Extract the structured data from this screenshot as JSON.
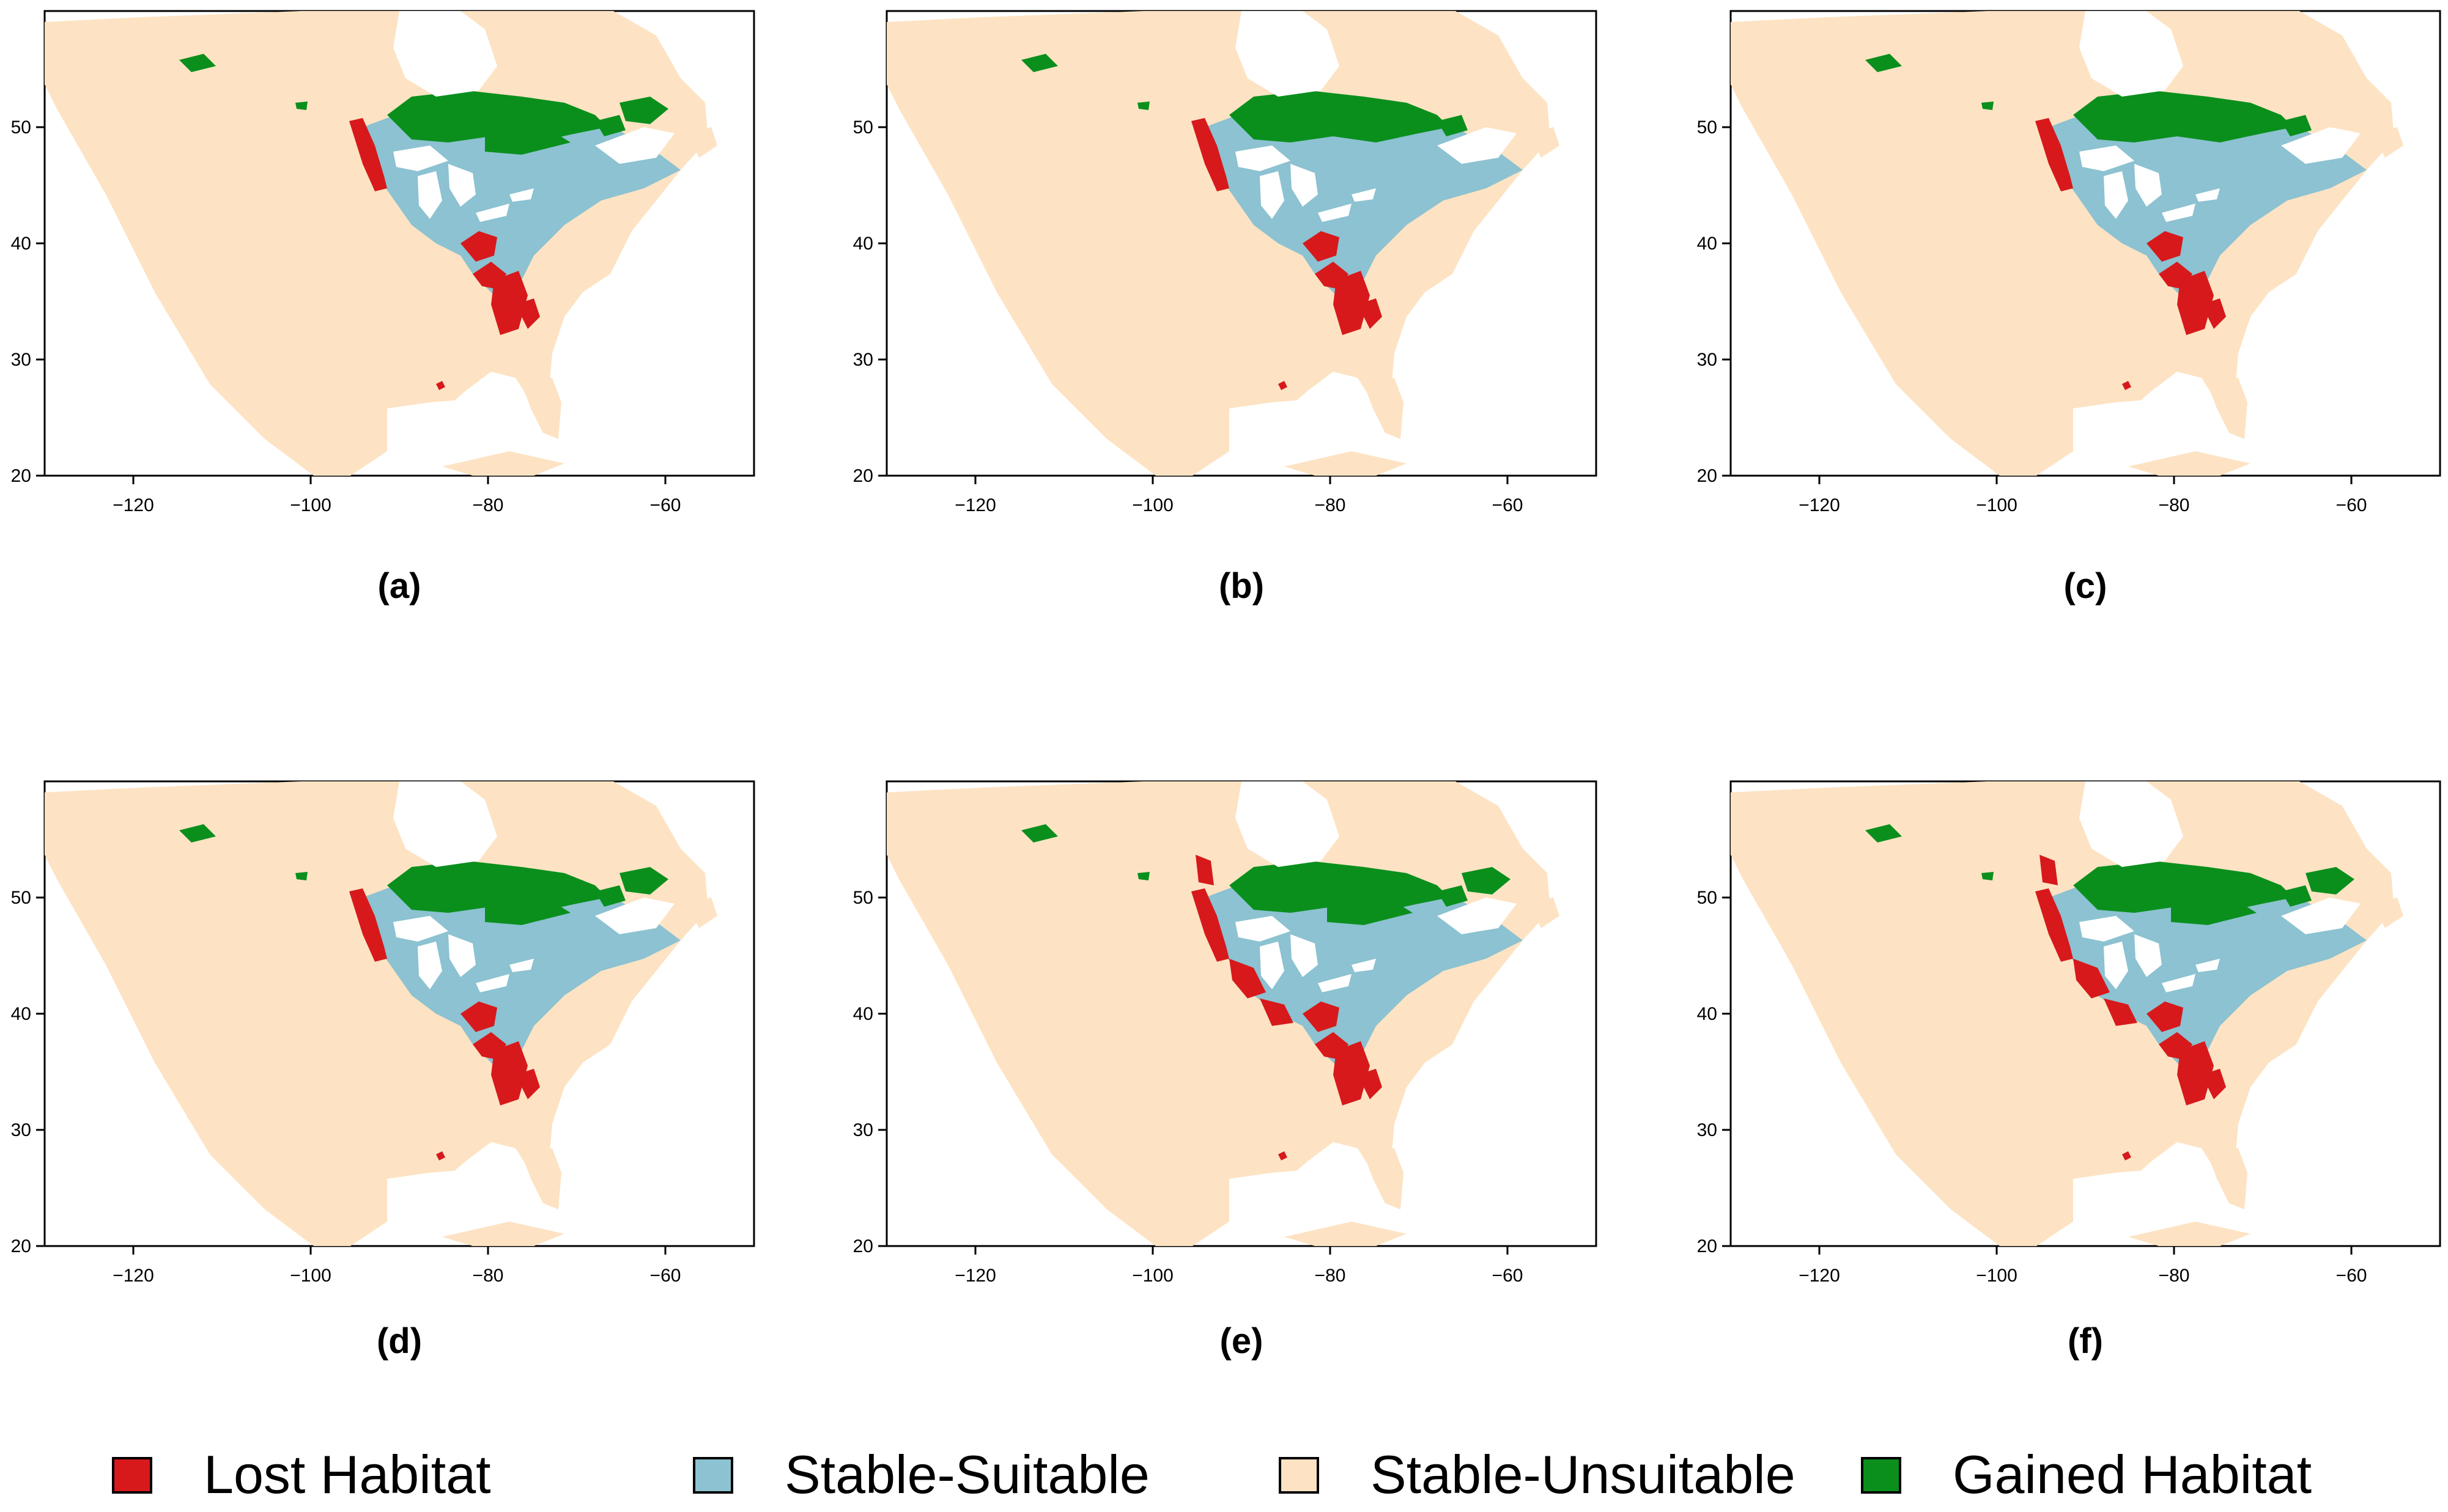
{
  "colors": {
    "lost": "#d7191c",
    "stable_suitable": "#8cc2d1",
    "stable_unsuitable": "#fde3c3",
    "gained": "#0a8f1d",
    "water": "#ffffff"
  },
  "axes": {
    "x_ticks": [
      -120,
      -100,
      -80,
      -60
    ],
    "y_ticks": [
      20,
      30,
      40,
      50
    ],
    "x_range": [
      -130,
      -50
    ],
    "y_range": [
      20,
      60
    ]
  },
  "panels": [
    {
      "id": "a",
      "label": "(a)",
      "lost_extent": "moderate",
      "gained_extent": "large"
    },
    {
      "id": "b",
      "label": "(b)",
      "lost_extent": "moderate",
      "gained_extent": "moderate"
    },
    {
      "id": "c",
      "label": "(c)",
      "lost_extent": "moderate",
      "gained_extent": "moderate"
    },
    {
      "id": "d",
      "label": "(d)",
      "lost_extent": "moderate",
      "gained_extent": "large"
    },
    {
      "id": "e",
      "label": "(e)",
      "lost_extent": "high",
      "gained_extent": "large"
    },
    {
      "id": "f",
      "label": "(f)",
      "lost_extent": "highest",
      "gained_extent": "large"
    }
  ],
  "legend": [
    {
      "key": "lost",
      "label": "Lost Habitat"
    },
    {
      "key": "stable_suitable",
      "label": "Stable-Suitable"
    },
    {
      "key": "stable_unsuitable",
      "label": "Stable-Unsuitable"
    },
    {
      "key": "gained",
      "label": "Gained Habitat"
    }
  ]
}
